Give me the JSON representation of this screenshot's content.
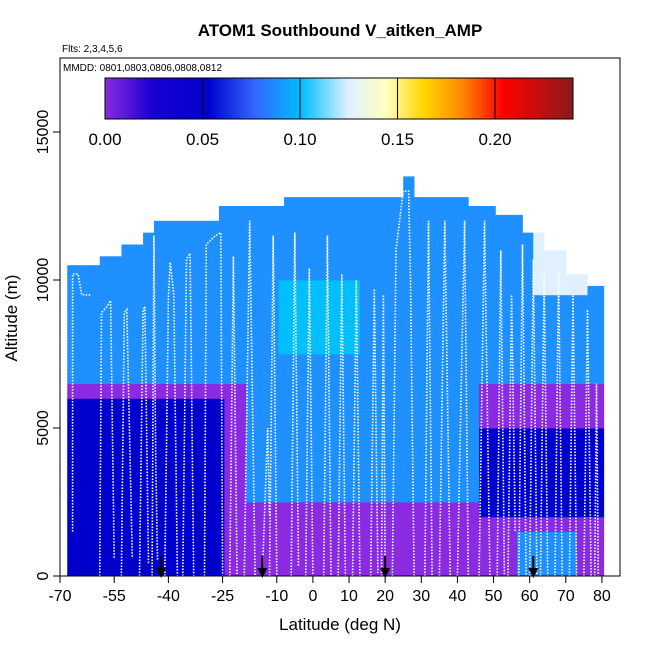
{
  "chart_data": {
    "type": "heatmap",
    "title": "ATOM1 Southbound V_aitken_AMP",
    "subtitle_flights": "Flts: 2,3,4,5,6",
    "subtitle_dates": "MMDD: 0801,0803,0806,0808,0812",
    "xlabel": "Latitude (deg N)",
    "ylabel": "Altitude (m)",
    "xlim": [
      -70,
      85
    ],
    "ylim": [
      0,
      17500
    ],
    "x_ticks": [
      -70,
      -55,
      -40,
      -25,
      -10,
      0,
      10,
      20,
      30,
      40,
      50,
      60,
      70,
      80
    ],
    "y_ticks": [
      0,
      5000,
      10000,
      15000
    ],
    "colorbar": {
      "range": [
        0,
        0.24
      ],
      "ticks": [
        0.0,
        0.05,
        0.1,
        0.15,
        0.2
      ],
      "tick_labels": [
        "0.00",
        "0.05",
        "0.10",
        "0.15",
        "0.20"
      ],
      "colors": [
        "#8a2be2",
        "#0000cd",
        "#1e90ff",
        "#00bfff",
        "#e0f0ff",
        "#ffffc0",
        "#ffd700",
        "#ff8c00",
        "#ff0000",
        "#b22222",
        "#8b1a1a"
      ]
    },
    "column_tops_m": [
      [
        -68,
        10500
      ],
      [
        -60,
        10800
      ],
      [
        -54,
        11200
      ],
      [
        -48,
        11600
      ],
      [
        -44,
        12000
      ],
      [
        -33,
        12000
      ],
      [
        -27,
        12500
      ],
      [
        -20,
        12500
      ],
      [
        -15,
        12500
      ],
      [
        -8,
        12800
      ],
      [
        0,
        12800
      ],
      [
        8,
        12800
      ],
      [
        15,
        12800
      ],
      [
        22,
        12800
      ],
      [
        25,
        13500
      ],
      [
        28,
        12800
      ],
      [
        35,
        12800
      ],
      [
        42,
        12500
      ],
      [
        50,
        12200
      ],
      [
        57,
        11600
      ],
      [
        64,
        11000
      ],
      [
        70,
        10200
      ],
      [
        76,
        9800
      ],
      [
        80,
        7000
      ]
    ],
    "flight_tracks": [
      [
        [
          -66.5,
          1500
        ],
        [
          -66.5,
          10200
        ],
        [
          -65,
          10200
        ],
        [
          -64,
          9500
        ],
        [
          -61.5,
          9500
        ]
      ],
      [
        [
          -59,
          0
        ],
        [
          -58.5,
          8900
        ],
        [
          -57,
          9100
        ],
        [
          -56,
          9300
        ],
        [
          -55,
          600
        ]
      ],
      [
        [
          -53,
          0
        ],
        [
          -52.2,
          8900
        ],
        [
          -51.5,
          9000
        ],
        [
          -50,
          600
        ]
      ],
      [
        [
          -48,
          0
        ],
        [
          -47,
          9000
        ],
        [
          -46.5,
          9100
        ],
        [
          -45.5,
          400
        ]
      ],
      [
        [
          -44.5,
          0
        ],
        [
          -44,
          11500
        ],
        [
          -43.5,
          4000
        ],
        [
          -43,
          500
        ]
      ],
      [
        [
          -41,
          0
        ],
        [
          -40,
          9400
        ],
        [
          -39.5,
          10600
        ],
        [
          -38.5,
          9500
        ],
        [
          -37.5,
          0
        ]
      ],
      [
        [
          -36,
          0
        ],
        [
          -35,
          10700
        ],
        [
          -34,
          10900
        ],
        [
          -33,
          0
        ]
      ],
      [
        [
          -30,
          0
        ],
        [
          -29.5,
          11200
        ],
        [
          -27,
          11500
        ],
        [
          -25.5,
          11600
        ],
        [
          -25,
          0
        ]
      ],
      [
        [
          -23,
          0
        ],
        [
          -22,
          10800
        ],
        [
          -21,
          0
        ]
      ],
      [
        [
          -19,
          0
        ],
        [
          -17.5,
          12000
        ],
        [
          -16,
          0
        ]
      ],
      [
        [
          -14,
          0
        ],
        [
          -12.5,
          5000
        ],
        [
          -12,
          2000
        ]
      ],
      [
        [
          -12,
          0
        ],
        [
          -11,
          11500
        ],
        [
          -10,
          0
        ]
      ],
      [
        [
          -6,
          0
        ],
        [
          -5,
          11600
        ],
        [
          -4,
          300
        ]
      ],
      [
        [
          -2,
          0
        ],
        [
          -1,
          10400
        ],
        [
          0,
          0
        ]
      ],
      [
        [
          3,
          0
        ],
        [
          4,
          11500
        ],
        [
          5,
          0
        ]
      ],
      [
        [
          7,
          0
        ],
        [
          8,
          10200
        ],
        [
          9,
          0
        ]
      ],
      [
        [
          11,
          0
        ],
        [
          12,
          10000
        ],
        [
          13,
          0
        ]
      ],
      [
        [
          16,
          0
        ],
        [
          17,
          9700
        ],
        [
          18,
          100
        ]
      ],
      [
        [
          19,
          0
        ],
        [
          19.5,
          9500
        ],
        [
          20,
          0
        ]
      ],
      [
        [
          22,
          0
        ],
        [
          23,
          11000
        ],
        [
          24,
          12000
        ],
        [
          25,
          13000
        ],
        [
          26.5,
          13000
        ],
        [
          27,
          10000
        ],
        [
          28,
          0
        ]
      ],
      [
        [
          31,
          0
        ],
        [
          32,
          12000
        ],
        [
          33,
          0
        ]
      ],
      [
        [
          35,
          0
        ],
        [
          36.5,
          12000
        ],
        [
          38,
          0
        ]
      ],
      [
        [
          40,
          0
        ],
        [
          42,
          12000
        ],
        [
          43,
          0
        ]
      ],
      [
        [
          46,
          0
        ],
        [
          47.5,
          12000
        ],
        [
          49,
          0
        ]
      ],
      [
        [
          51,
          0
        ],
        [
          52,
          11000
        ],
        [
          53,
          0
        ]
      ],
      [
        [
          54,
          0
        ],
        [
          55,
          9500
        ],
        [
          56,
          1500
        ]
      ],
      [
        [
          57,
          0
        ],
        [
          58,
          11200
        ],
        [
          59,
          0
        ]
      ],
      [
        [
          60,
          0
        ],
        [
          61,
          10700
        ],
        [
          62,
          0
        ]
      ],
      [
        [
          63,
          0
        ],
        [
          64,
          10200
        ],
        [
          65,
          0
        ]
      ],
      [
        [
          67,
          0
        ],
        [
          68,
          10300
        ],
        [
          69,
          0
        ]
      ],
      [
        [
          71,
          0
        ],
        [
          72,
          9500
        ],
        [
          73,
          0
        ]
      ],
      [
        [
          75,
          0
        ],
        [
          76,
          9000
        ],
        [
          77,
          0
        ]
      ],
      [
        [
          78,
          0
        ],
        [
          78.5,
          6500
        ],
        [
          79,
          0
        ]
      ]
    ],
    "arrows_at_lat": [
      -42,
      -14,
      20,
      61
    ]
  }
}
